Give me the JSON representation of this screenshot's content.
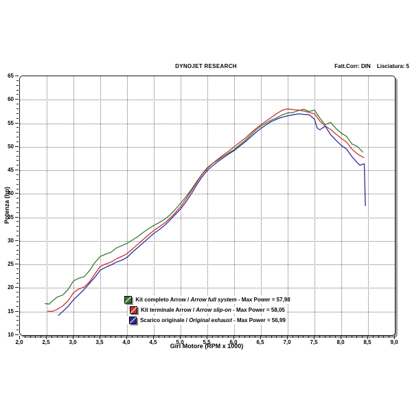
{
  "header": {
    "title_center": "DYNOJET RESEARCH",
    "correction": "Fatt.Corr: DIN",
    "smoothing": "Lisciatura: 5"
  },
  "chart_data": {
    "type": "line",
    "title": "DYNOJET RESEARCH",
    "xlabel": "Giri Motore (RPM x 1000)",
    "ylabel": "Potenza (hp)",
    "xlim": [
      2.0,
      9.0
    ],
    "x_major_step": 0.5,
    "x_minor_step": 0.1,
    "ylim": [
      10,
      65
    ],
    "y_major_step": 5,
    "y_minor_step": 1,
    "grid": "dotted",
    "legend_position": "bottom-center-inside",
    "decimal_separator": ",",
    "series": [
      {
        "name": "Kit completo Arrow",
        "name_en": "Arrow full system",
        "legend_suffix": "Max Power = 57,98",
        "max_power": 57.98,
        "color": "#337b33",
        "points": [
          [
            2.47,
            16.7
          ],
          [
            2.55,
            16.6
          ],
          [
            2.6,
            17.2
          ],
          [
            2.7,
            18.1
          ],
          [
            2.8,
            18.5
          ],
          [
            2.9,
            19.7
          ],
          [
            3.0,
            21.5
          ],
          [
            3.1,
            22.1
          ],
          [
            3.2,
            22.4
          ],
          [
            3.3,
            23.7
          ],
          [
            3.4,
            25.4
          ],
          [
            3.5,
            26.7
          ],
          [
            3.6,
            27.2
          ],
          [
            3.7,
            27.6
          ],
          [
            3.8,
            28.5
          ],
          [
            3.9,
            29.0
          ],
          [
            4.0,
            29.5
          ],
          [
            4.1,
            30.2
          ],
          [
            4.2,
            30.9
          ],
          [
            4.3,
            31.8
          ],
          [
            4.4,
            32.6
          ],
          [
            4.5,
            33.3
          ],
          [
            4.6,
            33.9
          ],
          [
            4.7,
            34.6
          ],
          [
            4.8,
            35.5
          ],
          [
            4.9,
            36.7
          ],
          [
            5.0,
            38.0
          ],
          [
            5.1,
            39.4
          ],
          [
            5.2,
            40.9
          ],
          [
            5.3,
            42.6
          ],
          [
            5.4,
            44.2
          ],
          [
            5.5,
            45.6
          ],
          [
            5.6,
            46.5
          ],
          [
            5.7,
            47.2
          ],
          [
            5.8,
            48.0
          ],
          [
            5.9,
            48.7
          ],
          [
            6.0,
            49.4
          ],
          [
            6.1,
            50.4
          ],
          [
            6.2,
            51.3
          ],
          [
            6.3,
            52.4
          ],
          [
            6.4,
            53.5
          ],
          [
            6.5,
            54.4
          ],
          [
            6.6,
            55.1
          ],
          [
            6.7,
            55.7
          ],
          [
            6.8,
            56.2
          ],
          [
            6.9,
            56.8
          ],
          [
            7.0,
            57.2
          ],
          [
            7.1,
            57.3
          ],
          [
            7.2,
            57.7
          ],
          [
            7.3,
            57.98
          ],
          [
            7.4,
            57.5
          ],
          [
            7.5,
            57.8
          ],
          [
            7.6,
            56.1
          ],
          [
            7.7,
            54.7
          ],
          [
            7.8,
            55.2
          ],
          [
            7.9,
            53.9
          ],
          [
            8.0,
            52.9
          ],
          [
            8.1,
            52.2
          ],
          [
            8.2,
            50.6
          ],
          [
            8.3,
            50.1
          ],
          [
            8.4,
            48.9
          ]
        ]
      },
      {
        "name": "Kit terminale Arrow",
        "name_en": "Arrow slip-on",
        "legend_suffix": "Max Power = 58,05",
        "max_power": 58.05,
        "color": "#c9302c",
        "points": [
          [
            2.52,
            15.1
          ],
          [
            2.6,
            15.0
          ],
          [
            2.7,
            15.5
          ],
          [
            2.8,
            16.2
          ],
          [
            2.9,
            17.3
          ],
          [
            3.0,
            19.0
          ],
          [
            3.1,
            19.8
          ],
          [
            3.2,
            20.2
          ],
          [
            3.3,
            21.3
          ],
          [
            3.4,
            23.0
          ],
          [
            3.5,
            24.6
          ],
          [
            3.6,
            25.1
          ],
          [
            3.7,
            25.5
          ],
          [
            3.8,
            26.2
          ],
          [
            3.9,
            26.7
          ],
          [
            4.0,
            27.3
          ],
          [
            4.1,
            28.3
          ],
          [
            4.2,
            29.3
          ],
          [
            4.3,
            30.3
          ],
          [
            4.4,
            31.3
          ],
          [
            4.5,
            32.2
          ],
          [
            4.6,
            33.0
          ],
          [
            4.7,
            33.8
          ],
          [
            4.8,
            34.8
          ],
          [
            4.9,
            36.0
          ],
          [
            5.0,
            37.3
          ],
          [
            5.1,
            38.9
          ],
          [
            5.2,
            40.6
          ],
          [
            5.3,
            42.4
          ],
          [
            5.4,
            44.1
          ],
          [
            5.5,
            45.4
          ],
          [
            5.6,
            46.5
          ],
          [
            5.7,
            47.4
          ],
          [
            5.8,
            48.3
          ],
          [
            5.9,
            49.1
          ],
          [
            6.0,
            50.0
          ],
          [
            6.1,
            50.9
          ],
          [
            6.2,
            51.8
          ],
          [
            6.3,
            52.8
          ],
          [
            6.4,
            53.8
          ],
          [
            6.5,
            54.7
          ],
          [
            6.6,
            55.5
          ],
          [
            6.7,
            56.3
          ],
          [
            6.8,
            57.1
          ],
          [
            6.9,
            57.8
          ],
          [
            7.0,
            58.05
          ],
          [
            7.1,
            57.9
          ],
          [
            7.2,
            57.8
          ],
          [
            7.3,
            57.6
          ],
          [
            7.4,
            57.3
          ],
          [
            7.5,
            57.0
          ],
          [
            7.6,
            55.5
          ],
          [
            7.7,
            54.4
          ],
          [
            7.8,
            53.7
          ],
          [
            7.9,
            52.7
          ],
          [
            8.0,
            51.8
          ],
          [
            8.1,
            51.0
          ],
          [
            8.2,
            49.5
          ],
          [
            8.3,
            48.5
          ],
          [
            8.42,
            47.7
          ]
        ]
      },
      {
        "name": "Scarico originale",
        "name_en": "Original exhaust",
        "legend_suffix": "Max Power = 56,99",
        "max_power": 56.99,
        "color": "#2a2a9d",
        "points": [
          [
            2.72,
            14.2
          ],
          [
            2.8,
            15.0
          ],
          [
            2.9,
            16.1
          ],
          [
            3.0,
            17.5
          ],
          [
            3.1,
            18.6
          ],
          [
            3.2,
            19.7
          ],
          [
            3.3,
            21.0
          ],
          [
            3.4,
            22.3
          ],
          [
            3.5,
            23.8
          ],
          [
            3.6,
            24.4
          ],
          [
            3.7,
            24.9
          ],
          [
            3.8,
            25.5
          ],
          [
            3.9,
            25.9
          ],
          [
            4.0,
            26.5
          ],
          [
            4.1,
            27.6
          ],
          [
            4.2,
            28.6
          ],
          [
            4.3,
            29.6
          ],
          [
            4.4,
            30.6
          ],
          [
            4.5,
            31.6
          ],
          [
            4.6,
            32.4
          ],
          [
            4.7,
            33.3
          ],
          [
            4.8,
            34.4
          ],
          [
            4.9,
            35.6
          ],
          [
            5.0,
            36.8
          ],
          [
            5.1,
            38.3
          ],
          [
            5.2,
            40.0
          ],
          [
            5.3,
            41.9
          ],
          [
            5.4,
            43.6
          ],
          [
            5.5,
            45.0
          ],
          [
            5.6,
            46.0
          ],
          [
            5.7,
            46.9
          ],
          [
            5.8,
            47.7
          ],
          [
            5.9,
            48.5
          ],
          [
            6.0,
            49.2
          ],
          [
            6.1,
            50.1
          ],
          [
            6.2,
            51.0
          ],
          [
            6.3,
            52.0
          ],
          [
            6.4,
            53.0
          ],
          [
            6.5,
            53.9
          ],
          [
            6.6,
            54.7
          ],
          [
            6.7,
            55.4
          ],
          [
            6.8,
            55.9
          ],
          [
            6.9,
            56.3
          ],
          [
            7.0,
            56.6
          ],
          [
            7.1,
            56.8
          ],
          [
            7.2,
            56.99
          ],
          [
            7.3,
            56.9
          ],
          [
            7.4,
            56.8
          ],
          [
            7.5,
            55.9
          ],
          [
            7.55,
            54.0
          ],
          [
            7.6,
            53.6
          ],
          [
            7.7,
            54.4
          ],
          [
            7.8,
            52.6
          ],
          [
            7.9,
            51.4
          ],
          [
            8.0,
            50.3
          ],
          [
            8.1,
            49.5
          ],
          [
            8.2,
            47.9
          ],
          [
            8.3,
            46.6
          ],
          [
            8.35,
            46.1
          ],
          [
            8.43,
            46.4
          ],
          [
            8.45,
            37.5
          ]
        ]
      }
    ]
  }
}
